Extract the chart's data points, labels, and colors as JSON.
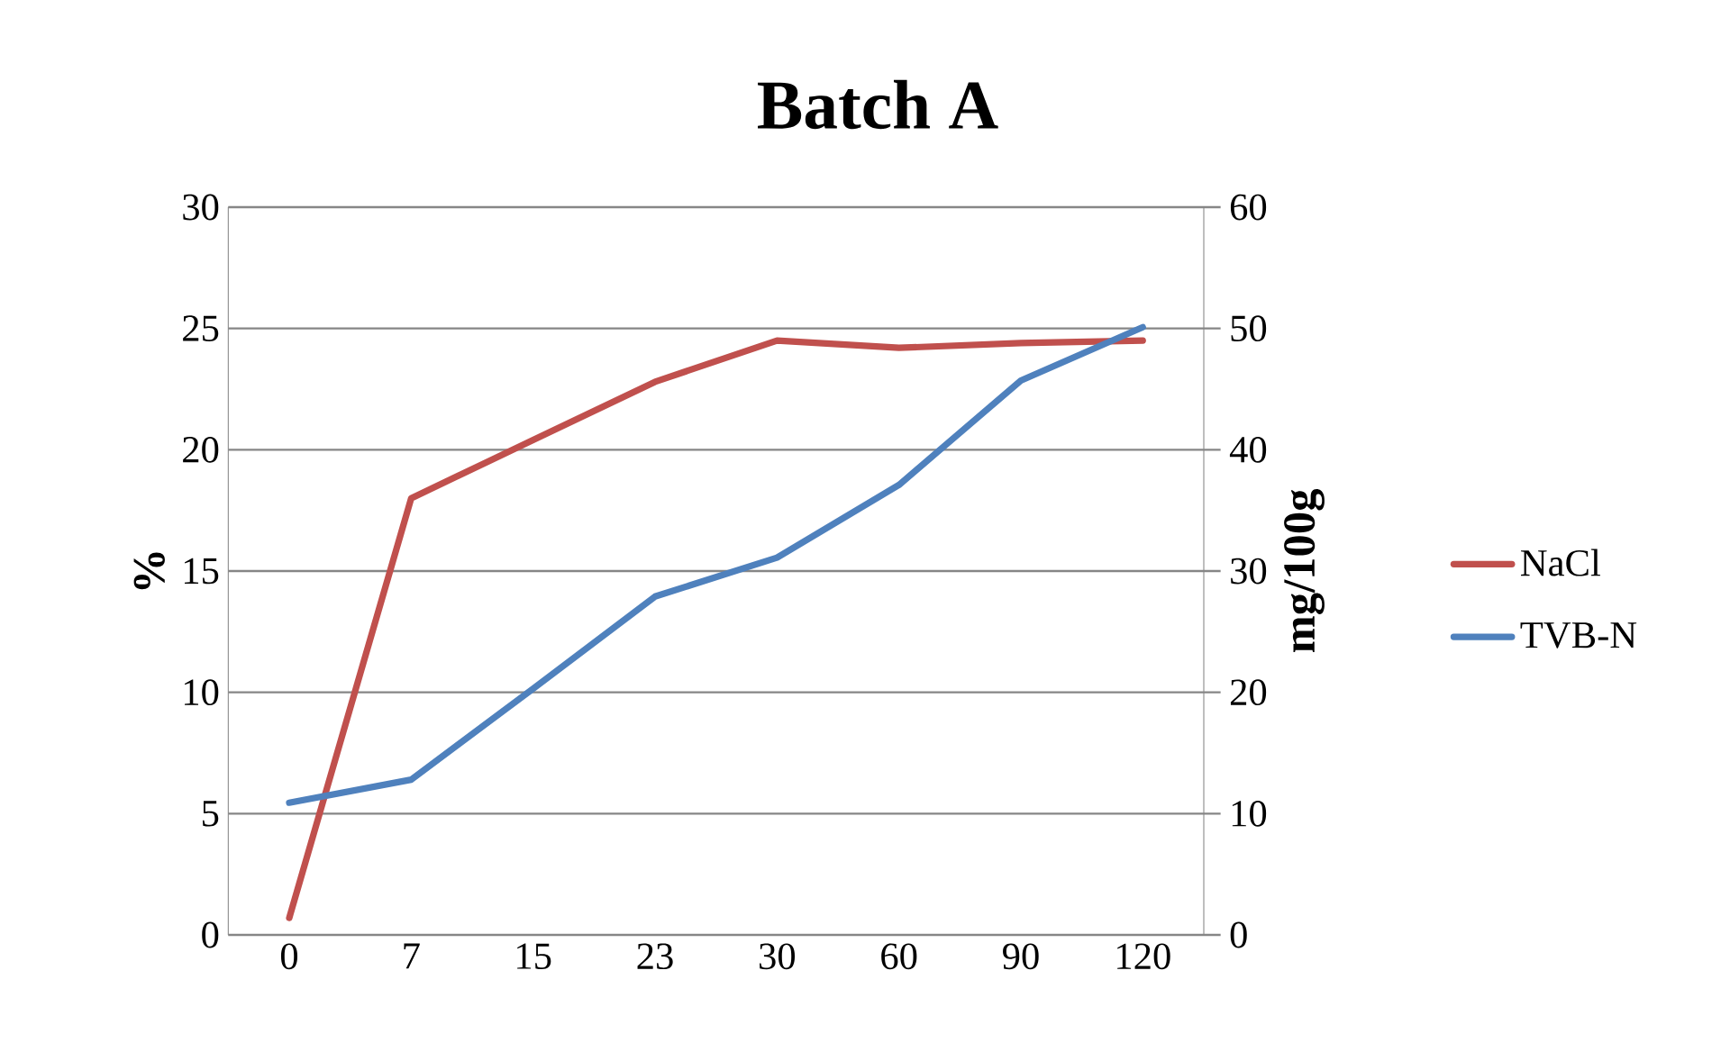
{
  "chart_data": {
    "type": "line",
    "title": "Batch A",
    "ylabel": "%",
    "y2label": "mg/100g",
    "categories": [
      "0",
      "7",
      "15",
      "23",
      "30",
      "60",
      "90",
      "120"
    ],
    "ylim": [
      0,
      30
    ],
    "yticks": [
      0,
      5,
      10,
      15,
      20,
      25,
      30
    ],
    "y2lim": [
      0,
      60
    ],
    "y2ticks": [
      0,
      10,
      20,
      30,
      40,
      50,
      60
    ],
    "grid": "y",
    "legend": "right",
    "marker": "none",
    "line_style": "solid",
    "series": [
      {
        "name": "NaCl",
        "color": "#c0504d",
        "values": [
          0.7,
          18.0,
          20.4,
          22.8,
          24.5,
          24.2,
          24.4,
          24.5
        ]
      },
      {
        "name": "TVB-N",
        "color": "#4f81bd",
        "axis": "y2",
        "values": [
          10.9,
          12.8,
          20.3,
          27.9,
          31.1,
          37.1,
          45.7,
          50.1
        ]
      }
    ]
  }
}
